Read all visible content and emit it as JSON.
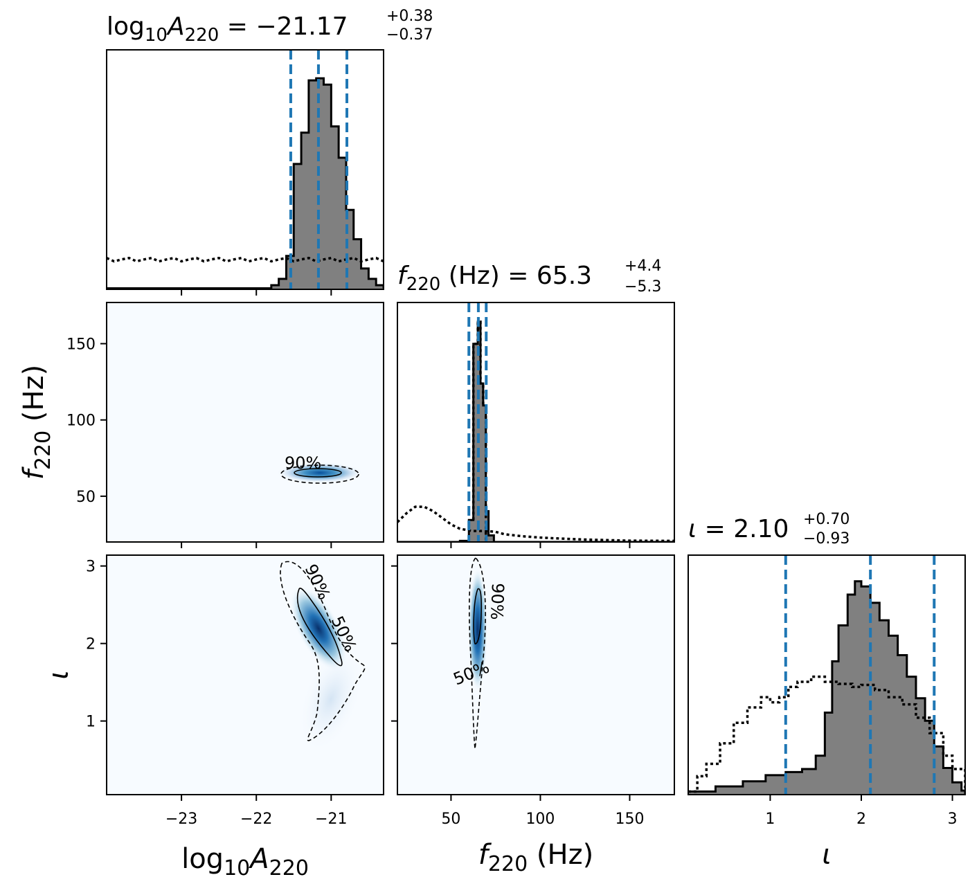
{
  "chart_data": [
    {
      "type": "histogram",
      "panel": "1D marginal of log10 A220",
      "title": {
        "prefix": "log",
        "prefix_sub": "10",
        "var": "A",
        "var_sub": "220",
        "eq": " = −21.17",
        "sup": "+0.38",
        "sub": "−0.37"
      },
      "quantile_lines": [
        -21.54,
        -21.17,
        -20.79
      ],
      "x_range": [
        -24.0,
        -20.3
      ],
      "bin_width": 0.1,
      "bins_left_edge": -21.9,
      "posterior_counts": [
        0.5,
        2,
        5,
        16,
        60,
        75,
        100,
        101,
        98,
        78,
        63,
        38,
        24,
        10,
        5,
        2,
        1
      ],
      "prior_level": 14,
      "y_max": 110,
      "y_ticks_shown": false
    },
    {
      "type": "histogram",
      "panel": "1D marginal of f220",
      "title": {
        "var": "f",
        "var_sub": "220",
        "unit": " (Hz) = 65.3",
        "sup": "+4.4",
        "sub": "−5.3"
      },
      "quantile_lines": [
        60.0,
        65.3,
        69.7
      ],
      "x_range": [
        20,
        175
      ],
      "posterior_bins": [
        [
          55,
          60,
          0.5
        ],
        [
          60,
          62.5,
          10
        ],
        [
          62.5,
          65,
          90
        ],
        [
          65,
          66.5,
          100
        ],
        [
          66.5,
          68,
          72
        ],
        [
          68,
          69.5,
          62
        ],
        [
          69.5,
          71,
          14
        ],
        [
          71,
          74,
          3
        ]
      ],
      "prior_curve": [
        [
          20,
          9
        ],
        [
          25,
          13
        ],
        [
          30,
          16
        ],
        [
          35,
          16
        ],
        [
          40,
          14
        ],
        [
          45,
          11
        ],
        [
          50,
          8
        ],
        [
          55,
          6
        ],
        [
          62,
          5
        ],
        [
          70,
          5
        ],
        [
          75,
          4.6
        ],
        [
          80,
          3.5
        ],
        [
          90,
          2.6
        ],
        [
          100,
          2
        ],
        [
          110,
          1.6
        ],
        [
          125,
          1.1
        ],
        [
          140,
          0.8
        ],
        [
          150,
          0.6
        ],
        [
          175,
          0.5
        ]
      ],
      "y_max": 105,
      "y_ticks_shown": false
    },
    {
      "type": "histogram",
      "panel": "1D marginal of iota",
      "title": {
        "var": "ι",
        "eq": " = 2.10",
        "sup": "+0.70",
        "sub": "−0.93"
      },
      "quantile_lines": [
        1.17,
        2.1,
        2.8
      ],
      "x_range": [
        0.1,
        3.14
      ],
      "posterior_curve": [
        [
          0.1,
          0.3
        ],
        [
          0.4,
          0.8
        ],
        [
          0.7,
          1.3
        ],
        [
          0.95,
          1.9
        ],
        [
          1.17,
          2.2
        ],
        [
          1.35,
          2.5
        ],
        [
          1.5,
          3.8
        ],
        [
          1.6,
          8
        ],
        [
          1.68,
          13
        ],
        [
          1.75,
          16.5
        ],
        [
          1.85,
          19.5
        ],
        [
          1.93,
          20.8
        ],
        [
          2.0,
          20.3
        ],
        [
          2.1,
          18.7
        ],
        [
          2.2,
          17
        ],
        [
          2.3,
          15.5
        ],
        [
          2.4,
          13.6
        ],
        [
          2.5,
          11.5
        ],
        [
          2.6,
          9.4
        ],
        [
          2.7,
          7.2
        ],
        [
          2.8,
          4.7
        ],
        [
          2.9,
          2.6
        ],
        [
          3.0,
          1.2
        ],
        [
          3.1,
          0.4
        ]
      ],
      "prior_curve": [
        [
          0.1,
          0.3
        ],
        [
          0.2,
          1.8
        ],
        [
          0.3,
          3
        ],
        [
          0.45,
          5
        ],
        [
          0.6,
          7
        ],
        [
          0.75,
          8.5
        ],
        [
          0.9,
          9.5
        ],
        [
          1.0,
          9.0
        ],
        [
          1.1,
          9.5
        ],
        [
          1.2,
          10.5
        ],
        [
          1.3,
          11
        ],
        [
          1.45,
          11.5
        ],
        [
          1.6,
          11
        ],
        [
          1.75,
          10.8
        ],
        [
          1.9,
          10.5
        ],
        [
          2.0,
          10.7
        ],
        [
          2.15,
          10.2
        ],
        [
          2.3,
          9.5
        ],
        [
          2.45,
          8.8
        ],
        [
          2.6,
          7.5
        ],
        [
          2.75,
          6
        ],
        [
          2.9,
          3.8
        ],
        [
          3.0,
          2.5
        ],
        [
          3.14,
          0.5
        ]
      ],
      "y_max": 22,
      "y_ticks_shown": false
    },
    {
      "type": "heatmap",
      "panel": "2D log10 A220 vs f220",
      "x_range": [
        -24.0,
        -20.3
      ],
      "y_range": [
        20,
        177
      ],
      "peak": {
        "x": -21.17,
        "y": 65.3
      },
      "contour_labels": [
        "90%"
      ]
    },
    {
      "type": "heatmap",
      "panel": "2D log10 A220 vs iota",
      "x_range": [
        -24.0,
        -20.3
      ],
      "y_range": [
        0.05,
        3.14
      ],
      "peak": {
        "x": -21.2,
        "y": 2.1
      },
      "contour_labels": [
        "90%",
        "50%"
      ]
    },
    {
      "type": "heatmap",
      "panel": "2D f220 vs iota",
      "x_range": [
        20,
        175
      ],
      "y_range": [
        0.05,
        3.14
      ],
      "peak": {
        "x": 65.3,
        "y": 2.1
      },
      "contour_labels": [
        "90%",
        "50%"
      ]
    }
  ],
  "axes": {
    "log10A": {
      "label": {
        "prefix": "log",
        "prefix_sub": "10",
        "var": "A",
        "var_sub": "220"
      },
      "ticks": [
        -23,
        -22,
        -21
      ],
      "tick_labels": [
        "−23",
        "−22",
        "−21"
      ]
    },
    "f220": {
      "label": {
        "var": "f",
        "var_sub": "220",
        "unit": " (Hz)"
      },
      "ticks": [
        50,
        100,
        150
      ],
      "tick_labels": [
        "50",
        "100",
        "150"
      ]
    },
    "iota": {
      "label": {
        "var": "ι"
      },
      "ticks": [
        1,
        2,
        3
      ],
      "tick_labels": [
        "1",
        "2",
        "3"
      ]
    }
  },
  "colors": {
    "posterior_fill": "#808080",
    "quantile_line": "#1f77b4",
    "density_low": "#f7fbff",
    "density_high": "#08306b",
    "axes": "#000000"
  }
}
